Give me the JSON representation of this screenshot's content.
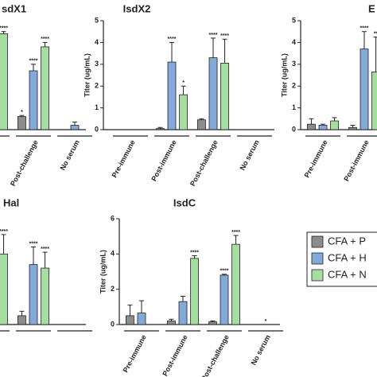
{
  "chart_data": [
    {
      "type": "bar",
      "title": "sdX1",
      "categories": [
        null,
        "Post-challenge",
        "No serum"
      ],
      "ylim": [
        0,
        5
      ],
      "series": [
        {
          "color": "#8c8c8c",
          "values": [
            null,
            0.6,
            0
          ],
          "errors": [
            null,
            0.05,
            null
          ],
          "significance": [
            null,
            "*",
            null
          ]
        },
        {
          "color": "#82a9d9",
          "values": [
            null,
            2.7,
            0.2
          ],
          "errors": [
            null,
            0.3,
            0.15
          ],
          "significance": [
            null,
            "****",
            null
          ]
        },
        {
          "color": "#a6dea0",
          "values": [
            4.4,
            3.8,
            0
          ],
          "errors": [
            0.1,
            0.2,
            null
          ],
          "significance": [
            "****",
            "****",
            null
          ]
        }
      ]
    },
    {
      "type": "bar",
      "title": "IsdX2",
      "ylabel": "Titer (ug/mL)",
      "categories": [
        "Pre-immune",
        "Post-immune",
        "Post-challenge",
        "No serum"
      ],
      "ylim": [
        0,
        5
      ],
      "yticks": [
        0,
        1,
        2,
        3,
        4,
        5
      ],
      "series": [
        {
          "color": "#8c8c8c",
          "values": [
            0,
            0.05,
            0.45,
            0
          ],
          "errors": [
            null,
            0.05,
            0.05,
            null
          ],
          "significance": [
            null,
            null,
            null,
            null
          ]
        },
        {
          "color": "#82a9d9",
          "values": [
            0,
            3.1,
            3.3,
            0
          ],
          "errors": [
            null,
            0.9,
            0.9,
            null
          ],
          "significance": [
            null,
            "****",
            "****",
            null
          ]
        },
        {
          "color": "#a6dea0",
          "values": [
            0,
            1.6,
            3.05,
            0
          ],
          "errors": [
            null,
            0.4,
            1.1,
            null
          ],
          "significance": [
            null,
            "*",
            "****",
            null
          ]
        }
      ]
    },
    {
      "type": "bar",
      "title": "E",
      "ylabel": "Titer (ug/mL)",
      "categories": [
        "Pre-immune",
        "Post-immune"
      ],
      "ylim": [
        0,
        5
      ],
      "yticks": [
        0,
        1,
        2,
        3,
        4,
        5
      ],
      "series": [
        {
          "color": "#8c8c8c",
          "values": [
            0.25,
            0.1
          ],
          "errors": [
            0.25,
            0.1
          ],
          "significance": [
            null,
            null
          ]
        },
        {
          "color": "#82a9d9",
          "values": [
            0.2,
            3.7
          ],
          "errors": [
            0.05,
            0.8
          ],
          "significance": [
            null,
            "****"
          ]
        },
        {
          "color": "#a6dea0",
          "values": [
            0.4,
            2.65
          ],
          "errors": [
            0.15,
            1.6
          ],
          "significance": [
            null,
            "**"
          ]
        }
      ]
    },
    {
      "type": "bar",
      "title": "Hal",
      "categories": [
        null,
        null,
        null
      ],
      "ylim": [
        0,
        6
      ],
      "series": [
        {
          "color": "#8c8c8c",
          "values": [
            null,
            0.5,
            0
          ],
          "errors": [
            null,
            0.25,
            null
          ],
          "significance": [
            null,
            null,
            null
          ]
        },
        {
          "color": "#82a9d9",
          "values": [
            null,
            3.4,
            0
          ],
          "errors": [
            null,
            1.0,
            null
          ],
          "significance": [
            null,
            "****",
            null
          ]
        },
        {
          "color": "#a6dea0",
          "values": [
            4.0,
            3.2,
            0
          ],
          "errors": [
            1.1,
            0.9,
            null
          ],
          "significance": [
            "****",
            "****",
            null
          ]
        }
      ]
    },
    {
      "type": "bar",
      "title": "IsdC",
      "ylabel": "Titer (ug/mL)",
      "categories": [
        "Pre-immune",
        "Post-immune",
        "Post-challenge",
        "No serum"
      ],
      "ylim": [
        0,
        6
      ],
      "yticks": [
        0,
        2,
        4,
        6
      ],
      "legend": "right",
      "series": [
        {
          "name": "CFA + P",
          "color": "#8c8c8c",
          "values": [
            0.5,
            0.2,
            0.15,
            0
          ],
          "errors": [
            0.6,
            0.1,
            0.05,
            null
          ],
          "significance": [
            null,
            null,
            null,
            null
          ]
        },
        {
          "name": "CFA + H",
          "color": "#82a9d9",
          "values": [
            0.65,
            1.3,
            2.8,
            0
          ],
          "errors": [
            0.7,
            0.3,
            0.05,
            null
          ],
          "significance": [
            null,
            null,
            "****",
            "*"
          ]
        },
        {
          "name": "CFA + N",
          "color": "#a6dea0",
          "values": [
            null,
            3.75,
            4.55,
            0
          ],
          "errors": [
            null,
            0.15,
            0.5,
            null
          ],
          "significance": [
            null,
            "****",
            "****",
            null
          ]
        }
      ]
    }
  ]
}
